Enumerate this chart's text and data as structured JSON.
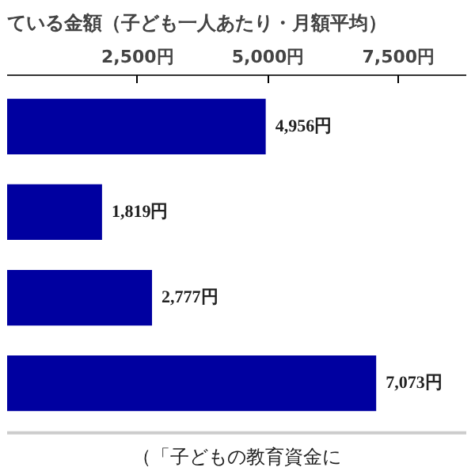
{
  "chart_data": {
    "type": "bar",
    "orientation": "horizontal",
    "title": "ている金額（子ども一人あたり・月額平均）",
    "categories": [
      null,
      null,
      null,
      null
    ],
    "values": [
      4956,
      1819,
      2777,
      7073
    ],
    "value_labels": [
      "4,956円",
      "1,819円",
      "2,777円",
      "7,073円"
    ],
    "color": "#0000a0",
    "xlim": [
      0,
      8800
    ],
    "xticks": [
      {
        "value": 2500,
        "label": "2,500円"
      },
      {
        "value": 5000,
        "label": "5,000円"
      },
      {
        "value": 7500,
        "label": "7,500円"
      }
    ],
    "grid": false,
    "annotations": [
      "（「子どもの教育資金に"
    ]
  }
}
